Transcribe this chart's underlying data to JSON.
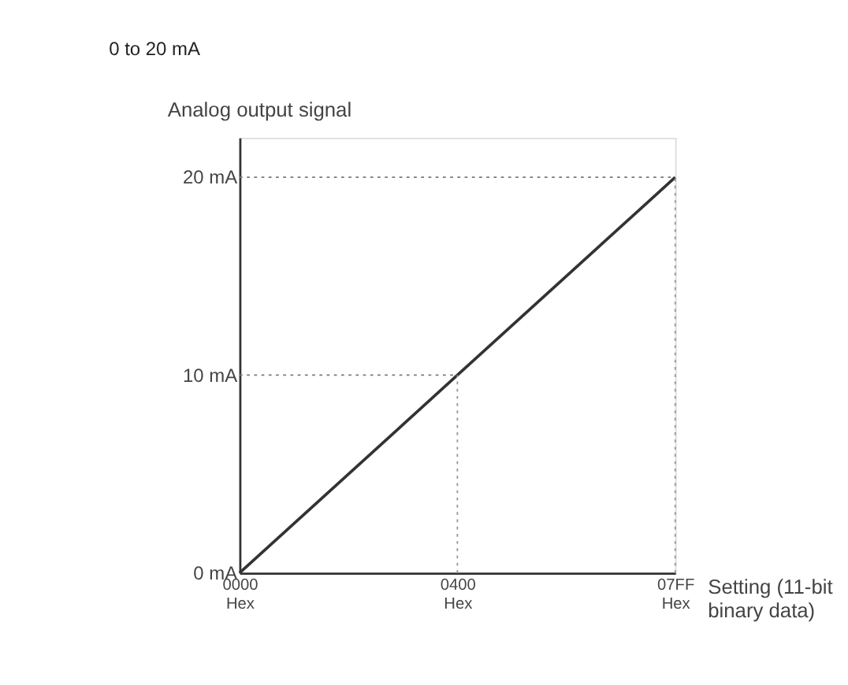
{
  "chart_data": {
    "type": "line",
    "title": "0 to 20 mA",
    "ylabel": "Analog output signal",
    "xlabel": "Setting (11-bit binary data)",
    "categories": [
      "0000 Hex",
      "0400 Hex",
      "07FF Hex"
    ],
    "series": [
      {
        "color": "#333333",
        "values": [
          0,
          10,
          20
        ]
      }
    ],
    "ylim": [
      0,
      22
    ],
    "yticks": [
      {
        "value": 0,
        "label": "0 mA"
      },
      {
        "value": 10,
        "label": "10 mA"
      },
      {
        "value": 20,
        "label": "20 mA"
      }
    ],
    "ref_lines": [
      {
        "axis": "y",
        "value": 10,
        "line_style": "dotted",
        "color": "#777777"
      },
      {
        "axis": "y",
        "value": 20,
        "line_style": "dotted",
        "color": "#777777"
      },
      {
        "axis": "x",
        "value": "0400 Hex",
        "line_style": "dotted",
        "color": "#999999"
      },
      {
        "axis": "x",
        "value": "07FF Hex",
        "line_style": "dotted",
        "color": "#999999"
      }
    ],
    "grid": false,
    "marker": "none",
    "line_style": "solid"
  }
}
